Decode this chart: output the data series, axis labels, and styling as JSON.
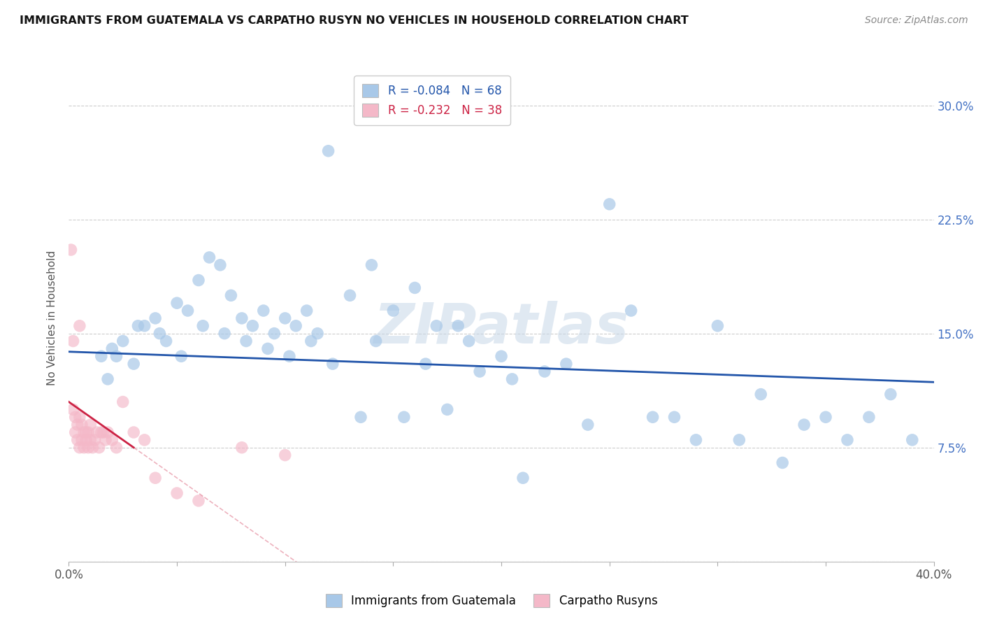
{
  "title": "IMMIGRANTS FROM GUATEMALA VS CARPATHO RUSYN NO VEHICLES IN HOUSEHOLD CORRELATION CHART",
  "source": "Source: ZipAtlas.com",
  "ylabel": "No Vehicles in Household",
  "xlim": [
    0.0,
    40.0
  ],
  "ylim": [
    0.0,
    32.0
  ],
  "ytick_positions": [
    0.0,
    7.5,
    15.0,
    22.5,
    30.0
  ],
  "ytick_labels": [
    "",
    "7.5%",
    "15.0%",
    "22.5%",
    "30.0%"
  ],
  "xtick_positions": [
    0,
    5,
    10,
    15,
    20,
    25,
    30,
    35,
    40
  ],
  "xtick_labels": [
    "0.0%",
    "",
    "",
    "",
    "",
    "",
    "",
    "",
    "40.0%"
  ],
  "legend1_label": "R = -0.084   N = 68",
  "legend2_label": "R = -0.232   N = 38",
  "blue_scatter_color": "#a8c8e8",
  "pink_scatter_color": "#f4b8c8",
  "trend_blue_color": "#2255aa",
  "trend_pink_color": "#cc2244",
  "right_axis_color": "#4472c4",
  "watermark": "ZIPatlas",
  "blue_x": [
    1.5,
    2.0,
    2.5,
    3.0,
    3.5,
    4.0,
    4.5,
    5.0,
    5.5,
    6.0,
    6.5,
    7.0,
    7.5,
    8.0,
    8.5,
    9.0,
    9.5,
    10.0,
    10.5,
    11.0,
    12.0,
    13.0,
    14.0,
    15.0,
    16.0,
    17.0,
    18.0,
    20.0,
    22.0,
    23.0,
    25.0,
    26.0,
    28.0,
    30.0,
    32.0,
    35.0,
    37.0,
    38.0,
    1.8,
    2.2,
    3.2,
    4.2,
    5.2,
    6.2,
    7.2,
    8.2,
    9.2,
    10.2,
    11.2,
    12.2,
    14.2,
    16.5,
    18.5,
    20.5,
    13.5,
    15.5,
    17.5,
    21.0,
    24.0,
    27.0,
    29.0,
    31.0,
    34.0,
    36.0,
    39.0,
    19.0,
    33.0,
    11.5
  ],
  "blue_y": [
    13.5,
    14.0,
    14.5,
    13.0,
    15.5,
    16.0,
    14.5,
    17.0,
    16.5,
    18.5,
    20.0,
    19.5,
    17.5,
    16.0,
    15.5,
    16.5,
    15.0,
    16.0,
    15.5,
    16.5,
    27.0,
    17.5,
    19.5,
    16.5,
    18.0,
    15.5,
    15.5,
    13.5,
    12.5,
    13.0,
    23.5,
    16.5,
    9.5,
    15.5,
    11.0,
    9.5,
    9.5,
    11.0,
    12.0,
    13.5,
    15.5,
    15.0,
    13.5,
    15.5,
    15.0,
    14.5,
    14.0,
    13.5,
    14.5,
    13.0,
    14.5,
    13.0,
    14.5,
    12.0,
    9.5,
    9.5,
    10.0,
    5.5,
    9.0,
    9.5,
    8.0,
    8.0,
    9.0,
    8.0,
    8.0,
    12.5,
    6.5,
    15.0
  ],
  "pink_x": [
    0.1,
    0.2,
    0.3,
    0.4,
    0.5,
    0.6,
    0.7,
    0.8,
    0.9,
    1.0,
    0.3,
    0.4,
    0.5,
    0.6,
    0.7,
    0.8,
    0.9,
    1.0,
    1.1,
    1.2,
    1.3,
    1.4,
    1.5,
    1.6,
    1.7,
    1.8,
    2.0,
    2.2,
    2.5,
    3.0,
    3.5,
    4.0,
    5.0,
    6.0,
    8.0,
    10.0,
    0.2,
    0.5
  ],
  "pink_y": [
    20.5,
    10.0,
    9.5,
    9.0,
    9.5,
    9.0,
    8.5,
    8.0,
    8.5,
    9.0,
    8.5,
    8.0,
    7.5,
    8.0,
    7.5,
    8.5,
    7.5,
    8.0,
    7.5,
    8.0,
    8.5,
    7.5,
    8.5,
    8.5,
    8.0,
    8.5,
    8.0,
    7.5,
    10.5,
    8.5,
    8.0,
    5.5,
    4.5,
    4.0,
    7.5,
    7.0,
    14.5,
    15.5
  ],
  "blue_trend_x0": 0.0,
  "blue_trend_y0": 13.8,
  "blue_trend_x1": 40.0,
  "blue_trend_y1": 11.8,
  "pink_trend_x0": 0.0,
  "pink_trend_y0": 10.5,
  "pink_trend_x1": 3.0,
  "pink_trend_y1": 7.5,
  "pink_dash_x0": 3.0,
  "pink_dash_x1": 40.0
}
